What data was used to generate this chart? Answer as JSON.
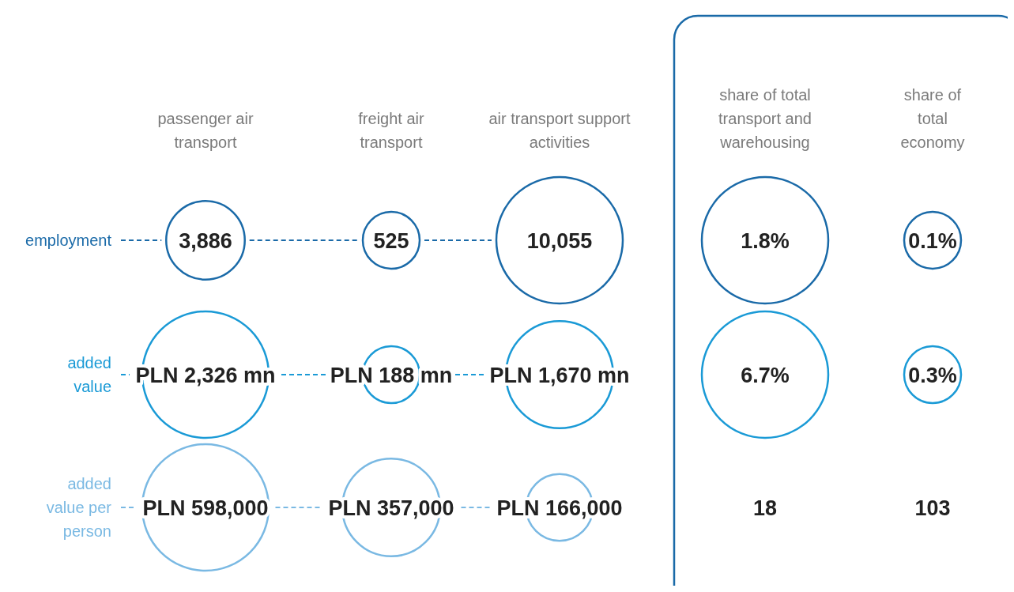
{
  "chart_data": {
    "type": "other",
    "categories": [
      "passenger air transport",
      "freight air transport",
      "air transport support activities",
      "share of total transport and warehousing",
      "share of total economy"
    ],
    "series": [
      {
        "name": "employment",
        "color": "#1a6aa8",
        "colors": [
          "#1a6aa8",
          "#1a6aa8",
          "#1a6aa8",
          "#1a6aa8",
          "#1a6aa8"
        ],
        "values": [
          3886,
          525,
          10055,
          1.8,
          0.1
        ],
        "value_labels": [
          "3,886",
          "525",
          "10,055",
          "1.8%",
          "0.1%"
        ]
      },
      {
        "name": "added value",
        "color": "#1a9ad6",
        "colors": [
          "#1a9ad6",
          "#1a9ad6",
          "#1a9ad6",
          "#1a9ad6",
          "#1a9ad6"
        ],
        "values": [
          2326000000,
          188000000,
          1670000000,
          6.7,
          0.3
        ],
        "value_labels": [
          "PLN 2,326 mn",
          "PLN 188 mn",
          "PLN 1,670 mn",
          "6.7%",
          "0.3%"
        ]
      },
      {
        "name": "added value per person",
        "color": "#7ab9e3",
        "colors": [
          "#7ab9e3",
          "#7ab9e3",
          "#7ab9e3",
          null,
          null
        ],
        "values": [
          598000,
          357000,
          166000,
          18,
          103
        ],
        "value_labels": [
          "PLN 598,000",
          "PLN 357,000",
          "PLN 166,000",
          "18",
          "103"
        ]
      }
    ]
  }
}
